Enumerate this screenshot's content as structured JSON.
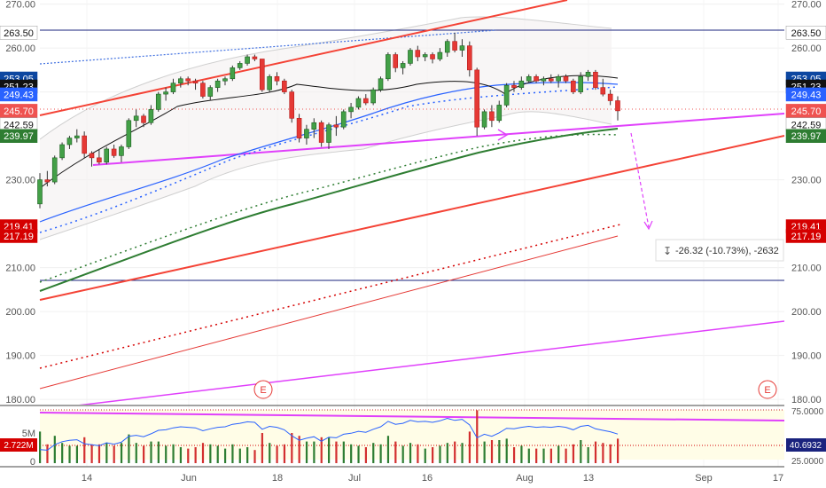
{
  "chart_data": {
    "type": "candlestick",
    "title": "",
    "ylim": [
      178,
      272
    ],
    "x_ticks": [
      "14",
      "Jun",
      "18",
      "Jul",
      "16",
      "Aug",
      "13",
      "Sep",
      "17"
    ],
    "y_ticks": [
      "180.00",
      "190.00",
      "200.00",
      "210.00",
      "230.00",
      "250.00",
      "260.00",
      "270.00"
    ],
    "price_labels": [
      {
        "text": "263.50",
        "value": 263.5,
        "color": "#ffffff",
        "side": "both"
      },
      {
        "text": "253.05",
        "value": 253.05,
        "color": "#0d47a1",
        "side": "both"
      },
      {
        "text": "251.23",
        "value": 251.23,
        "color": "#111111",
        "side": "both"
      },
      {
        "text": "249.43",
        "value": 249.43,
        "color": "#2962ff",
        "side": "both"
      },
      {
        "text": "245.70",
        "value": 245.7,
        "color": "#ef5350",
        "side": "both"
      },
      {
        "text": "242.59",
        "value": 242.59,
        "color": "#ffffff",
        "side": "both"
      },
      {
        "text": "239.97",
        "value": 239.97,
        "color": "#2e7d32",
        "side": "both"
      },
      {
        "text": "219.41",
        "value": 219.41,
        "color": "#d50000",
        "side": "both"
      },
      {
        "text": "217.19",
        "value": 217.19,
        "color": "#d50000",
        "side": "both"
      }
    ],
    "candles": [
      {
        "o": 224.5,
        "h": 231.5,
        "l": 223.5,
        "c": 230
      },
      {
        "o": 230,
        "h": 232,
        "l": 228.5,
        "c": 229.5
      },
      {
        "o": 229.5,
        "h": 235.5,
        "l": 229,
        "c": 235
      },
      {
        "o": 235,
        "h": 238.5,
        "l": 234.5,
        "c": 238
      },
      {
        "o": 238,
        "h": 240,
        "l": 237,
        "c": 239.5
      },
      {
        "o": 239.5,
        "h": 241.5,
        "l": 238.5,
        "c": 240
      },
      {
        "o": 240,
        "h": 241,
        "l": 235,
        "c": 236
      },
      {
        "o": 236,
        "h": 236.5,
        "l": 233,
        "c": 235
      },
      {
        "o": 235,
        "h": 237,
        "l": 233.5,
        "c": 234
      },
      {
        "o": 234,
        "h": 237.5,
        "l": 233.5,
        "c": 237
      },
      {
        "o": 237,
        "h": 238,
        "l": 235,
        "c": 235.5
      },
      {
        "o": 235.5,
        "h": 238,
        "l": 234,
        "c": 237.5
      },
      {
        "o": 237.5,
        "h": 244,
        "l": 237,
        "c": 243.5
      },
      {
        "o": 243.5,
        "h": 246,
        "l": 242,
        "c": 244.5
      },
      {
        "o": 244.5,
        "h": 245,
        "l": 242,
        "c": 243
      },
      {
        "o": 243,
        "h": 247,
        "l": 242.5,
        "c": 246
      },
      {
        "o": 246,
        "h": 250,
        "l": 245.5,
        "c": 249.5
      },
      {
        "o": 249.5,
        "h": 251,
        "l": 248,
        "c": 250
      },
      {
        "o": 250,
        "h": 253,
        "l": 249.5,
        "c": 252
      },
      {
        "o": 252,
        "h": 253.5,
        "l": 251,
        "c": 253
      },
      {
        "o": 253,
        "h": 253.5,
        "l": 251.5,
        "c": 252.5
      },
      {
        "o": 252.5,
        "h": 253,
        "l": 250.5,
        "c": 252
      },
      {
        "o": 252,
        "h": 252.5,
        "l": 248.5,
        "c": 249
      },
      {
        "o": 249,
        "h": 251.5,
        "l": 248,
        "c": 251
      },
      {
        "o": 251,
        "h": 253,
        "l": 250,
        "c": 252.5
      },
      {
        "o": 252.5,
        "h": 253.5,
        "l": 251.5,
        "c": 253
      },
      {
        "o": 253,
        "h": 256,
        "l": 252.5,
        "c": 255.5
      },
      {
        "o": 255.5,
        "h": 257,
        "l": 255,
        "c": 256.5
      },
      {
        "o": 256.5,
        "h": 258.5,
        "l": 256,
        "c": 258
      },
      {
        "o": 258,
        "h": 258.5,
        "l": 257,
        "c": 257.5
      },
      {
        "o": 257.5,
        "h": 257.5,
        "l": 250,
        "c": 250.5
      },
      {
        "o": 250.5,
        "h": 254,
        "l": 250,
        "c": 253.5
      },
      {
        "o": 253.5,
        "h": 254.5,
        "l": 251.5,
        "c": 252.5
      },
      {
        "o": 252.5,
        "h": 253,
        "l": 249.5,
        "c": 250
      },
      {
        "o": 250,
        "h": 250.5,
        "l": 243,
        "c": 244
      },
      {
        "o": 244,
        "h": 245,
        "l": 238.5,
        "c": 239.5
      },
      {
        "o": 239.5,
        "h": 242.5,
        "l": 238,
        "c": 241.5
      },
      {
        "o": 241.5,
        "h": 244,
        "l": 239.5,
        "c": 243
      },
      {
        "o": 243,
        "h": 243.5,
        "l": 237.5,
        "c": 238.5
      },
      {
        "o": 238.5,
        "h": 243,
        "l": 237,
        "c": 242.5
      },
      {
        "o": 242.5,
        "h": 244.5,
        "l": 240,
        "c": 242
      },
      {
        "o": 242,
        "h": 246,
        "l": 241.5,
        "c": 245.5
      },
      {
        "o": 245.5,
        "h": 247.5,
        "l": 244,
        "c": 246.5
      },
      {
        "o": 246.5,
        "h": 249,
        "l": 246,
        "c": 248.5
      },
      {
        "o": 248.5,
        "h": 249.5,
        "l": 247,
        "c": 247.5
      },
      {
        "o": 247.5,
        "h": 251,
        "l": 247,
        "c": 250.5
      },
      {
        "o": 250.5,
        "h": 253.5,
        "l": 250,
        "c": 253
      },
      {
        "o": 253,
        "h": 259,
        "l": 252.5,
        "c": 258.5
      },
      {
        "o": 258.5,
        "h": 259,
        "l": 254.5,
        "c": 255.5
      },
      {
        "o": 255.5,
        "h": 257,
        "l": 254,
        "c": 256.5
      },
      {
        "o": 256.5,
        "h": 260,
        "l": 256,
        "c": 259.5
      },
      {
        "o": 259.5,
        "h": 260.5,
        "l": 257,
        "c": 258
      },
      {
        "o": 258,
        "h": 259,
        "l": 257,
        "c": 258.5
      },
      {
        "o": 258.5,
        "h": 259,
        "l": 256.5,
        "c": 257.5
      },
      {
        "o": 257.5,
        "h": 260,
        "l": 257,
        "c": 259
      },
      {
        "o": 259,
        "h": 262,
        "l": 258,
        "c": 261.5
      },
      {
        "o": 261.5,
        "h": 263.5,
        "l": 259,
        "c": 259.5
      },
      {
        "o": 259.5,
        "h": 262,
        "l": 258,
        "c": 260.5
      },
      {
        "o": 260.5,
        "h": 261.5,
        "l": 253.5,
        "c": 255
      },
      {
        "o": 255,
        "h": 255.5,
        "l": 240,
        "c": 242
      },
      {
        "o": 242,
        "h": 246,
        "l": 241.5,
        "c": 245.5
      },
      {
        "o": 245.5,
        "h": 247,
        "l": 242,
        "c": 243.5
      },
      {
        "o": 243.5,
        "h": 248,
        "l": 243,
        "c": 247
      },
      {
        "o": 247,
        "h": 252,
        "l": 246.5,
        "c": 251.5
      },
      {
        "o": 251.5,
        "h": 252.5,
        "l": 250,
        "c": 251
      },
      {
        "o": 251,
        "h": 253.5,
        "l": 250.5,
        "c": 252.5
      },
      {
        "o": 252.5,
        "h": 254,
        "l": 252,
        "c": 253.5
      },
      {
        "o": 253.5,
        "h": 254,
        "l": 252,
        "c": 252.5
      },
      {
        "o": 252.5,
        "h": 253.5,
        "l": 251.5,
        "c": 253
      },
      {
        "o": 253,
        "h": 254,
        "l": 252,
        "c": 252.5
      },
      {
        "o": 252.5,
        "h": 254,
        "l": 251,
        "c": 253.5
      },
      {
        "o": 253.5,
        "h": 254,
        "l": 252,
        "c": 252.5
      },
      {
        "o": 252.5,
        "h": 253,
        "l": 249.5,
        "c": 250
      },
      {
        "o": 250,
        "h": 254.5,
        "l": 249.5,
        "c": 253.5
      },
      {
        "o": 253.5,
        "h": 255,
        "l": 252.5,
        "c": 254.5
      },
      {
        "o": 254.5,
        "h": 255,
        "l": 250.5,
        "c": 251
      },
      {
        "o": 251,
        "h": 253,
        "l": 249,
        "c": 249.5
      },
      {
        "o": 249.5,
        "h": 250.5,
        "l": 247,
        "c": 248
      },
      {
        "o": 248,
        "h": 249,
        "l": 243.5,
        "c": 245.7
      }
    ],
    "volume_axis": {
      "ticks": [
        "5M",
        "0"
      ],
      "current": "2.722M"
    },
    "rsi_axis": {
      "ticks": [
        "75.0000",
        "25.0000"
      ],
      "current": "40.6932"
    },
    "measure_label": "-26.32 (-10.73%), -2632",
    "earnings_marker": "E"
  }
}
